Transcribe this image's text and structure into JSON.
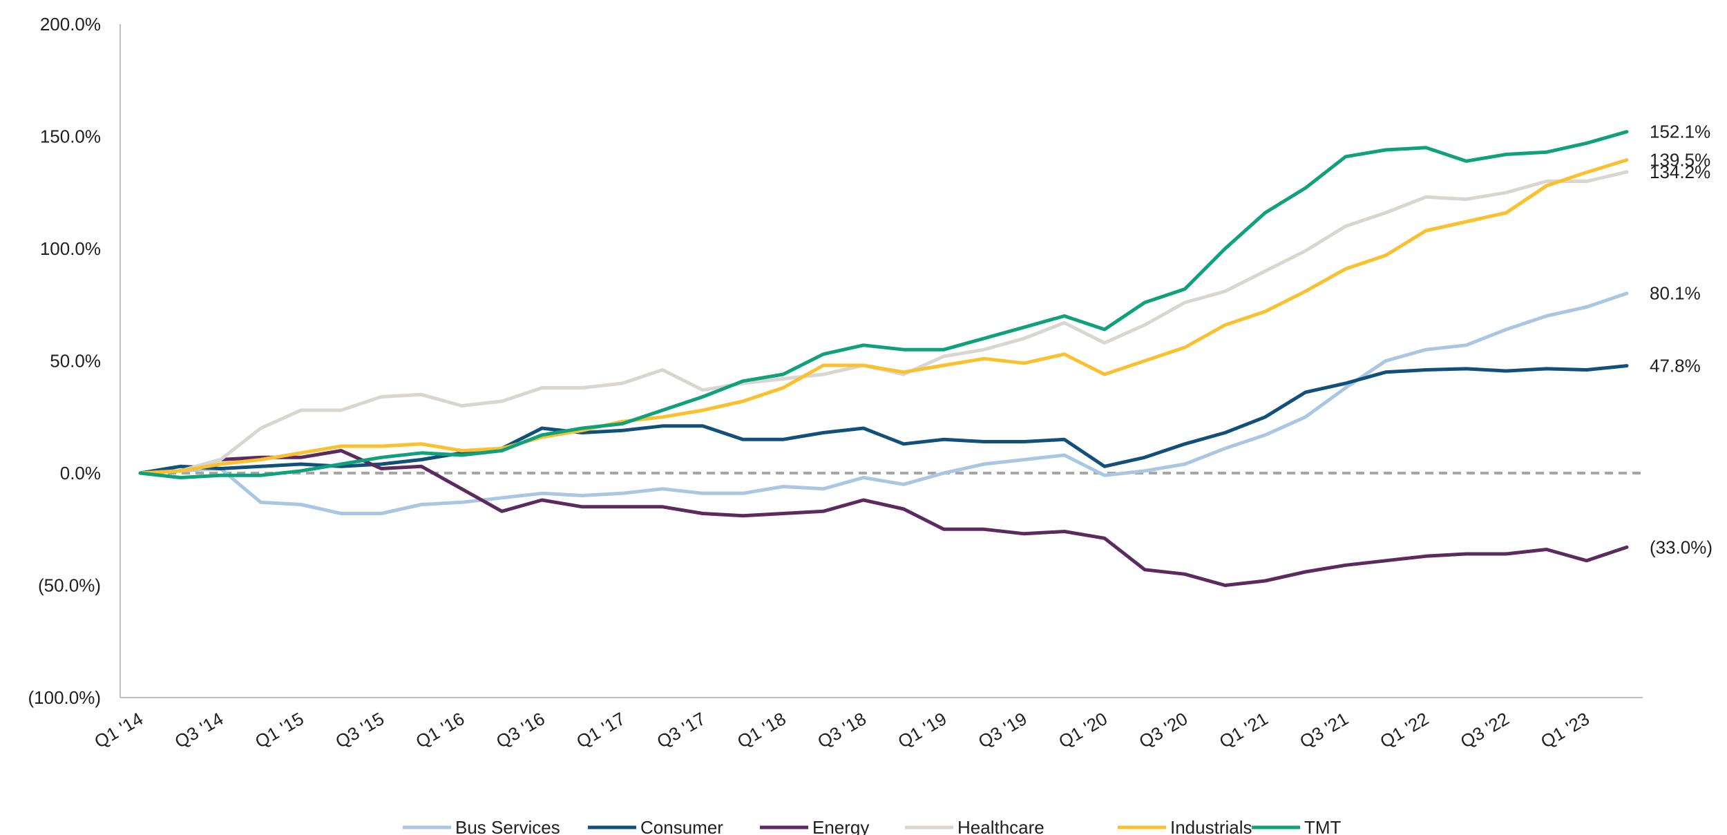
{
  "chart_data": {
    "type": "line",
    "title": "",
    "xlabel": "",
    "ylabel": "",
    "ylim": [
      -100,
      200
    ],
    "y_ticks": [
      {
        "value": 200,
        "label": "200.0%"
      },
      {
        "value": 150,
        "label": "150.0%"
      },
      {
        "value": 100,
        "label": "100.0%"
      },
      {
        "value": 50,
        "label": "50.0%"
      },
      {
        "value": 0,
        "label": "0.0%"
      },
      {
        "value": -50,
        "label": "(50.0%)"
      },
      {
        "value": -100,
        "label": "(100.0%)"
      }
    ],
    "x": [
      "Q1'14",
      "Q2'14",
      "Q3'14",
      "Q4'14",
      "Q1'15",
      "Q2'15",
      "Q3'15",
      "Q4'15",
      "Q1'16",
      "Q2'16",
      "Q3'16",
      "Q4'16",
      "Q1'17",
      "Q2'17",
      "Q3'17",
      "Q4'17",
      "Q1'18",
      "Q2'18",
      "Q3'18",
      "Q4'18",
      "Q1'19",
      "Q2'19",
      "Q3'19",
      "Q4'19",
      "Q1'20",
      "Q2'20",
      "Q3'20",
      "Q4'20",
      "Q1'21",
      "Q2'21",
      "Q3'21",
      "Q4'21",
      "Q1'22",
      "Q2'22",
      "Q3'22",
      "Q4'22",
      "Q1'23",
      "Q2'23"
    ],
    "x_tick_labels": [
      {
        "index": 0,
        "label": "Q1 '14"
      },
      {
        "index": 2,
        "label": "Q3 '14"
      },
      {
        "index": 4,
        "label": "Q1 '15"
      },
      {
        "index": 6,
        "label": "Q3 '15"
      },
      {
        "index": 8,
        "label": "Q1 '16"
      },
      {
        "index": 10,
        "label": "Q3 '16"
      },
      {
        "index": 12,
        "label": "Q1 '17"
      },
      {
        "index": 14,
        "label": "Q3 '17"
      },
      {
        "index": 16,
        "label": "Q1 '18"
      },
      {
        "index": 18,
        "label": "Q3 '18"
      },
      {
        "index": 20,
        "label": "Q1 '19"
      },
      {
        "index": 22,
        "label": "Q3 '19"
      },
      {
        "index": 24,
        "label": "Q1 '20"
      },
      {
        "index": 26,
        "label": "Q3 '20"
      },
      {
        "index": 28,
        "label": "Q1 '21"
      },
      {
        "index": 30,
        "label": "Q3 '21"
      },
      {
        "index": 32,
        "label": "Q1 '22"
      },
      {
        "index": 34,
        "label": "Q3 '22"
      },
      {
        "index": 36,
        "label": "Q1 '23"
      }
    ],
    "zero_line": {
      "value": 0,
      "style": "dashed",
      "color": "#a6a6a6"
    },
    "grid": false,
    "legend_position": "bottom",
    "series": [
      {
        "name": "Bus Services",
        "color": "#a9c6e3",
        "end_label": "80.1%",
        "values": [
          0,
          1,
          2,
          -13,
          -14,
          -18,
          -18,
          -14,
          -13,
          -11,
          -9,
          -10,
          -9,
          -7,
          -9,
          -9,
          -6,
          -7,
          -2,
          -5,
          0,
          4,
          6,
          8,
          -1,
          1,
          4,
          11,
          17,
          25,
          38,
          50,
          55,
          57,
          64,
          70,
          74,
          80.1
        ]
      },
      {
        "name": "Consumer",
        "color": "#11507a",
        "end_label": "47.8%",
        "values": [
          0,
          3,
          2,
          3,
          4,
          3,
          4,
          6,
          9,
          11,
          20,
          18,
          19,
          21,
          21,
          15,
          15,
          18,
          20,
          13,
          15,
          14,
          14,
          15,
          3,
          7,
          13,
          18,
          25,
          36,
          40,
          45,
          46,
          46.5,
          45.5,
          46.5,
          46,
          47.8
        ]
      },
      {
        "name": "Energy",
        "color": "#5b2a5e",
        "end_label": "(33.0%)",
        "values": [
          0,
          1,
          6,
          7,
          7,
          10,
          2,
          3,
          -7,
          -17,
          -12,
          -15,
          -15,
          -15,
          -18,
          -19,
          -18,
          -17,
          -12,
          -16,
          -25,
          -25,
          -27,
          -26,
          -29,
          -43,
          -45,
          -50,
          -48,
          -44,
          -41,
          -39,
          -37,
          -36,
          -36,
          -34,
          -39,
          -33
        ]
      },
      {
        "name": "Healthcare",
        "color": "#d9d6d1",
        "end_label": "134.2%",
        "values": [
          0,
          1,
          6,
          20,
          28,
          28,
          34,
          35,
          30,
          32,
          38,
          38,
          40,
          46,
          37,
          40,
          42,
          44,
          48,
          44,
          52,
          55,
          60,
          67,
          58,
          66,
          76,
          81,
          90,
          99,
          110,
          116,
          123,
          122,
          125,
          130,
          130,
          134.2
        ]
      },
      {
        "name": "Industrials",
        "color": "#fbc02d",
        "end_label": "139.5%",
        "values": [
          0,
          1,
          4,
          6,
          9,
          12,
          12,
          13,
          10,
          11,
          16,
          19,
          23,
          25,
          28,
          32,
          38,
          48,
          48,
          45,
          48,
          51,
          49,
          53,
          44,
          50,
          56,
          66,
          72,
          81,
          91,
          97,
          108,
          112,
          116,
          128,
          134,
          139.5
        ]
      },
      {
        "name": "TMT",
        "color": "#0fa07c",
        "end_label": "152.1%",
        "values": [
          0,
          -2,
          -1,
          -1,
          1,
          4,
          7,
          9,
          8,
          10,
          17,
          20,
          22,
          28,
          34,
          41,
          44,
          53,
          57,
          55,
          55,
          60,
          65,
          70,
          64,
          76,
          82,
          100,
          116,
          127,
          141,
          144,
          145,
          139,
          142,
          143,
          147,
          152.1
        ]
      }
    ]
  }
}
